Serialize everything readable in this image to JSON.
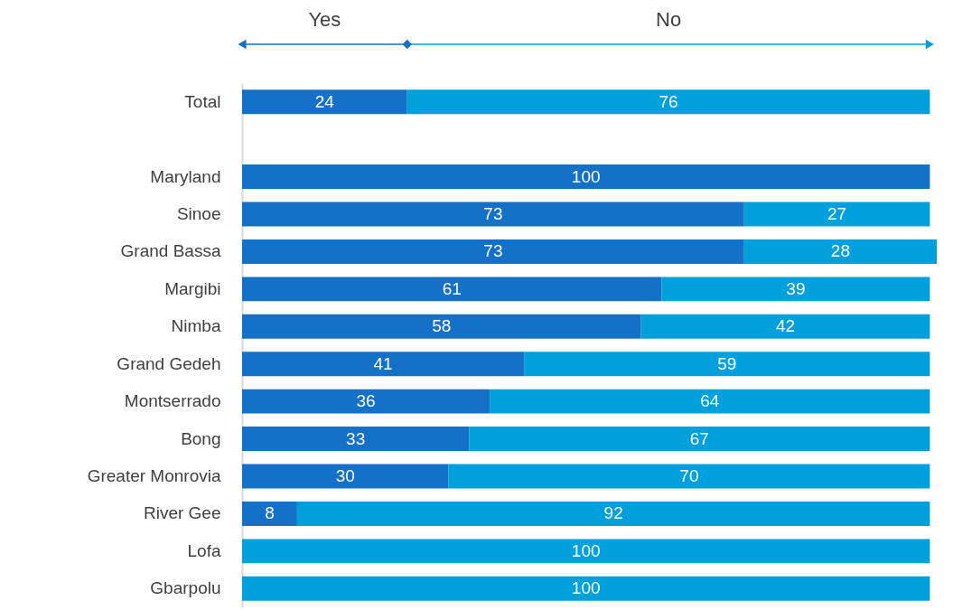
{
  "chart_data": {
    "type": "bar",
    "orientation": "horizontal",
    "stacked": true,
    "data_labels": true,
    "legend": "top",
    "grid": false,
    "categories": [
      "Total",
      null,
      "Maryland",
      "Sinoe",
      "Grand Bassa",
      "Margibi",
      "Nimba",
      "Grand Gedeh",
      "Montserrado",
      "Bong",
      "Greater Monrovia",
      "River Gee",
      "Lofa",
      "Gbarpolu"
    ],
    "series": [
      {
        "name": "Yes",
        "color": "#1570c8",
        "values": [
          24,
          null,
          100,
          73,
          73,
          61,
          58,
          41,
          36,
          33,
          30,
          8,
          null,
          null
        ]
      },
      {
        "name": "No",
        "color": "#00a0dc",
        "values": [
          76,
          null,
          null,
          27,
          28,
          39,
          42,
          59,
          64,
          67,
          70,
          92,
          100,
          100
        ]
      }
    ]
  }
}
